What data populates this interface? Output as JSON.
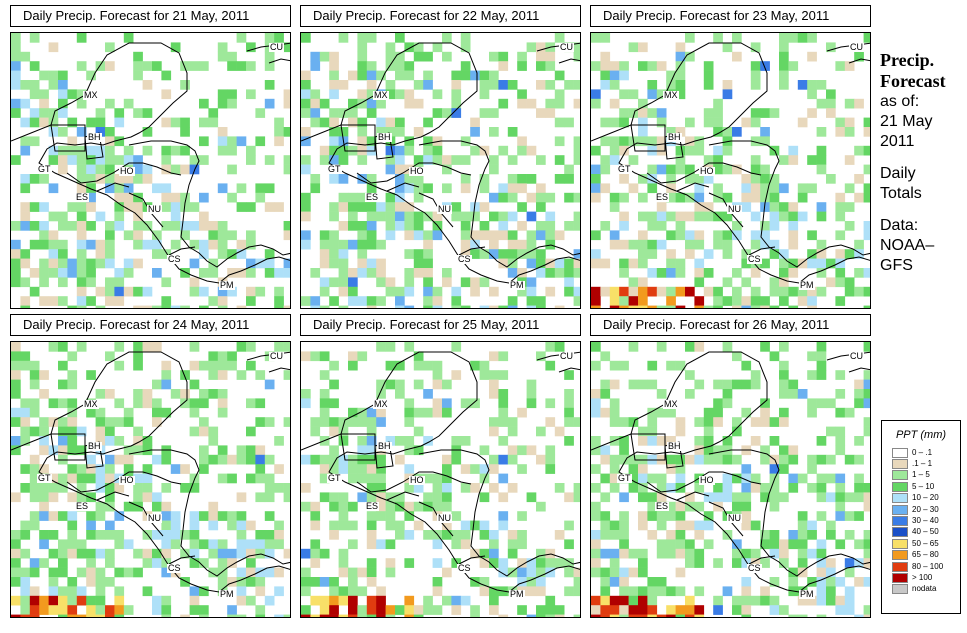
{
  "panels": [
    {
      "title": "Daily Precip. Forecast for  21 May, 2011",
      "day": 0
    },
    {
      "title": "Daily Precip. Forecast for  22 May, 2011",
      "day": 1
    },
    {
      "title": "Daily Precip. Forecast for  23 May, 2011",
      "day": 2
    },
    {
      "title": "Daily Precip. Forecast for  24 May, 2011",
      "day": 3
    },
    {
      "title": "Daily Precip. Forecast for  25 May, 2011",
      "day": 4
    },
    {
      "title": "Daily Precip. Forecast for  26 May, 2011",
      "day": 5
    }
  ],
  "country_labels": {
    "MX": "MX",
    "BH": "BH",
    "GT": "GT",
    "HO": "HO",
    "ES": "ES",
    "NU": "NU",
    "CS": "CS",
    "PM": "PM",
    "CU": "CU"
  },
  "side": {
    "title_line1": "Precip.",
    "title_line2": "Forecast",
    "asof": "as of:",
    "date_line1": "21 May",
    "date_line2": "2011",
    "daily_line1": "Daily",
    "daily_line2": "Totals",
    "data_line1": "Data:",
    "data_line2": "NOAA–",
    "data_line3": "GFS"
  },
  "legend": {
    "title": "PPT (mm)",
    "items": [
      {
        "label": "0 – .1",
        "color": "#ffffff"
      },
      {
        "label": ".1 – 1",
        "color": "#e8d8bc"
      },
      {
        "label": "1 – 5",
        "color": "#9ee89a"
      },
      {
        "label": "5 – 10",
        "color": "#64d664"
      },
      {
        "label": "10 – 20",
        "color": "#aee0f8"
      },
      {
        "label": "20 – 30",
        "color": "#6ab0f0"
      },
      {
        "label": "30 – 40",
        "color": "#3a7ce6"
      },
      {
        "label": "40 – 50",
        "color": "#1a50c8"
      },
      {
        "label": "50 – 65",
        "color": "#f8e068"
      },
      {
        "label": "65 – 80",
        "color": "#f29a1e"
      },
      {
        "label": "80 – 100",
        "color": "#e03c10"
      },
      {
        "label": "> 100",
        "color": "#b00000"
      },
      {
        "label": "nodata",
        "color": "#c8c8c8"
      }
    ]
  },
  "colors": {
    "coastline": "#000000",
    "border": "#000000"
  }
}
